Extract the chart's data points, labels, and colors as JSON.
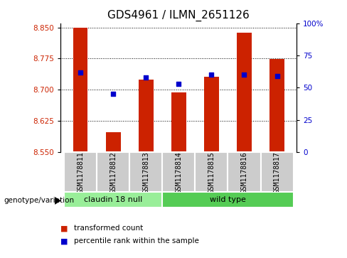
{
  "title": "GDS4961 / ILMN_2651126",
  "samples": [
    "GSM1178811",
    "GSM1178812",
    "GSM1178813",
    "GSM1178814",
    "GSM1178815",
    "GSM1178816",
    "GSM1178817"
  ],
  "bar_values": [
    8.849,
    8.598,
    8.724,
    8.693,
    8.732,
    8.838,
    8.774
  ],
  "bar_base": 8.55,
  "percentile_ranks": [
    62,
    45,
    58,
    53,
    60,
    60,
    59
  ],
  "ylim_left": [
    8.55,
    8.86
  ],
  "ylim_right": [
    0,
    100
  ],
  "yticks_left": [
    8.55,
    8.625,
    8.7,
    8.775,
    8.85
  ],
  "yticks_right": [
    0,
    25,
    50,
    75,
    100
  ],
  "ytick_labels_right": [
    "0",
    "25",
    "50",
    "75",
    "100%"
  ],
  "bar_color": "#cc2200",
  "dot_color": "#0000cc",
  "group1_label": "claudin 18 null",
  "group2_label": "wild type",
  "group1_color": "#99ee99",
  "group2_color": "#55cc55",
  "legend_tc": "transformed count",
  "legend_pr": "percentile rank within the sample",
  "genotype_label": "genotype/variation",
  "bar_width": 0.45,
  "title_fontsize": 11,
  "tick_fontsize": 7.5,
  "sample_fontsize": 7,
  "group_fontsize": 8,
  "legend_fontsize": 7.5
}
